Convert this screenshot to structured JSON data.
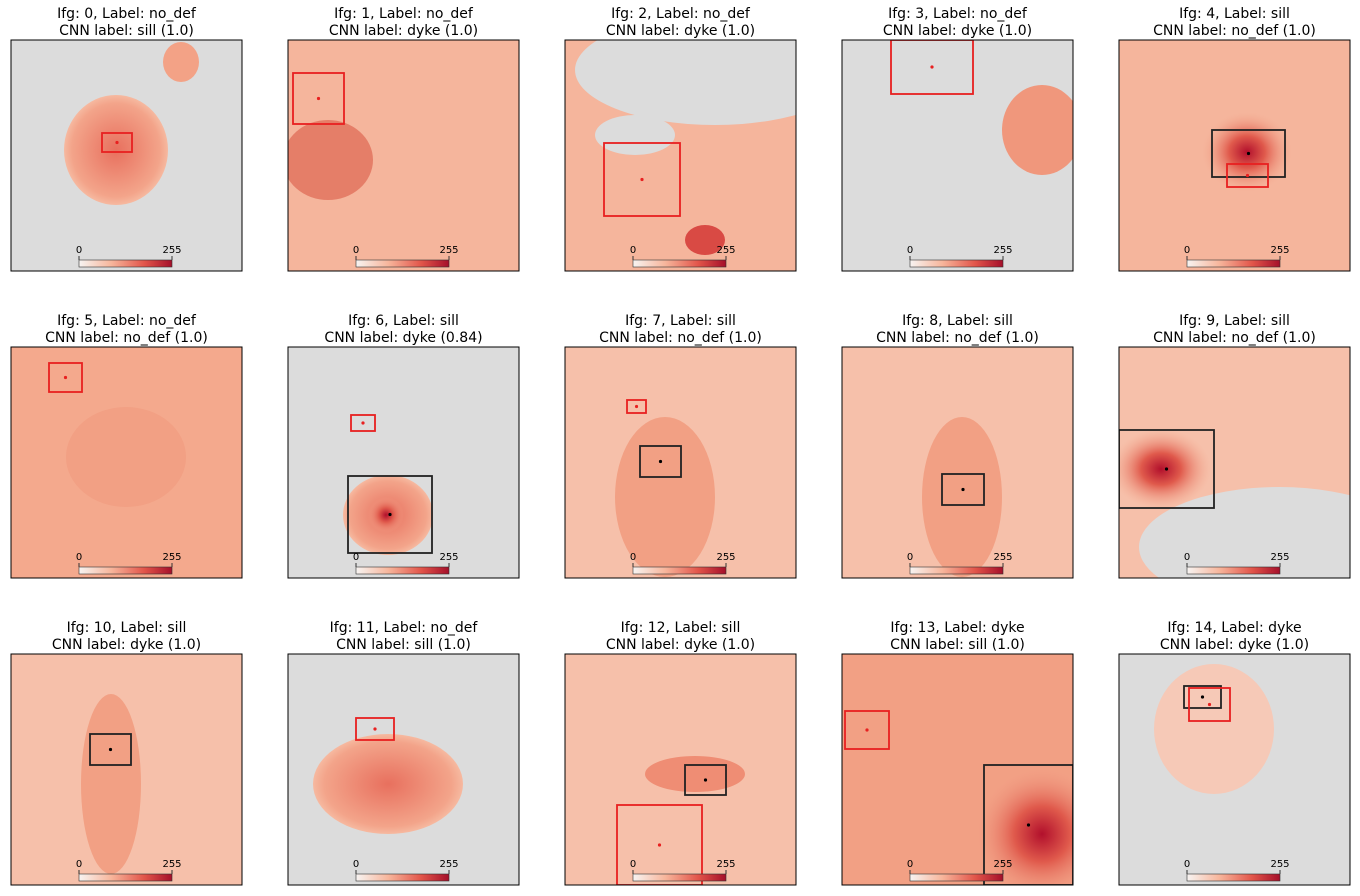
{
  "panels": [
    {
      "title": "Ifg: 0, Label: no_def",
      "subtitle": "CNN label: sill (1.0)"
    },
    {
      "title": "Ifg: 1, Label: no_def",
      "subtitle": "CNN label: dyke (1.0)"
    },
    {
      "title": "Ifg: 2, Label: no_def",
      "subtitle": "CNN label: dyke (1.0)"
    },
    {
      "title": "Ifg: 3, Label: no_def",
      "subtitle": "CNN label: dyke (1.0)"
    },
    {
      "title": "Ifg: 4, Label: sill",
      "subtitle": "CNN label: no_def (1.0)"
    },
    {
      "title": "Ifg: 5, Label: no_def",
      "subtitle": "CNN label: no_def (1.0)"
    },
    {
      "title": "Ifg: 6, Label: sill",
      "subtitle": "CNN label: dyke (0.84)"
    },
    {
      "title": "Ifg: 7, Label: sill",
      "subtitle": "CNN label: no_def (1.0)"
    },
    {
      "title": "Ifg: 8, Label: sill",
      "subtitle": "CNN label: no_def (1.0)"
    },
    {
      "title": "Ifg: 9, Label: sill",
      "subtitle": "CNN label: no_def (1.0)"
    },
    {
      "title": "Ifg: 10, Label: sill",
      "subtitle": "CNN label: dyke (1.0)"
    },
    {
      "title": "Ifg: 11, Label: no_def",
      "subtitle": "CNN label: sill (1.0)"
    },
    {
      "title": "Ifg: 12, Label: sill",
      "subtitle": "CNN label: dyke (1.0)"
    },
    {
      "title": "Ifg: 13, Label: dyke",
      "subtitle": "CNN label: sill (1.0)"
    },
    {
      "title": "Ifg: 14, Label: dyke",
      "subtitle": "CNN label: dyke (1.0)"
    }
  ],
  "colorbar_ticks": [
    0,
    255
  ]
}
